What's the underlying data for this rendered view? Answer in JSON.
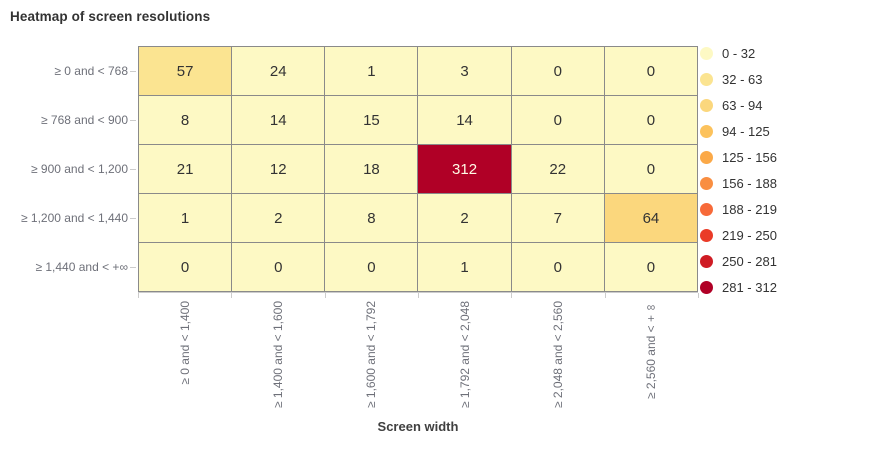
{
  "title": "Heatmap of screen resolutions",
  "chart_data": {
    "type": "heatmap",
    "title": "Heatmap of screen resolutions",
    "xlabel": "Screen width",
    "ylabel": "",
    "x_categories": [
      "≥ 0 and < 1,400",
      "≥ 1,400 and < 1,600",
      "≥ 1,600 and < 1,792",
      "≥ 1,792 and < 2,048",
      "≥ 2,048 and < 2,560",
      "≥ 2,560 and < +∞"
    ],
    "y_categories": [
      "≥ 0 and < 768",
      "≥ 768 and < 900",
      "≥ 900 and < 1,200",
      "≥ 1,200 and < 1,440",
      "≥ 1,440 and < +∞"
    ],
    "rows": [
      [
        57,
        24,
        1,
        3,
        0,
        0
      ],
      [
        8,
        14,
        15,
        14,
        0,
        0
      ],
      [
        21,
        12,
        18,
        312,
        22,
        0
      ],
      [
        1,
        2,
        8,
        2,
        7,
        64
      ],
      [
        0,
        0,
        0,
        1,
        0,
        0
      ]
    ],
    "value_range": [
      0,
      312
    ],
    "grid": true,
    "legend": {
      "position": "right",
      "items": [
        {
          "label": "0 - 32",
          "color": "#fdf9c4",
          "min": 0,
          "max": 32
        },
        {
          "label": "32 - 63",
          "color": "#fbe491",
          "min": 32,
          "max": 63
        },
        {
          "label": "63 - 94",
          "color": "#fbd77d",
          "min": 63,
          "max": 94
        },
        {
          "label": "94 - 125",
          "color": "#fcc25c",
          "min": 94,
          "max": 125
        },
        {
          "label": "125 - 156",
          "color": "#fba948",
          "min": 125,
          "max": 156
        },
        {
          "label": "156 - 188",
          "color": "#f98e41",
          "min": 156,
          "max": 188
        },
        {
          "label": "188 - 219",
          "color": "#f76a39",
          "min": 188,
          "max": 219
        },
        {
          "label": "219 - 250",
          "color": "#ea3b28",
          "min": 219,
          "max": 250
        },
        {
          "label": "250 - 281",
          "color": "#cf1c24",
          "min": 250,
          "max": 281
        },
        {
          "label": "281 - 312",
          "color": "#b00026",
          "min": 281,
          "max": 312
        }
      ]
    }
  },
  "colors": {
    "cell_border": "#8a8a8a",
    "axis": "#cccccc",
    "axis_label": "#6e7079",
    "title_text": "#333333",
    "cell_text": "#333333",
    "cell_text_inverse": "#fffbe6",
    "background": "#ffffff"
  }
}
